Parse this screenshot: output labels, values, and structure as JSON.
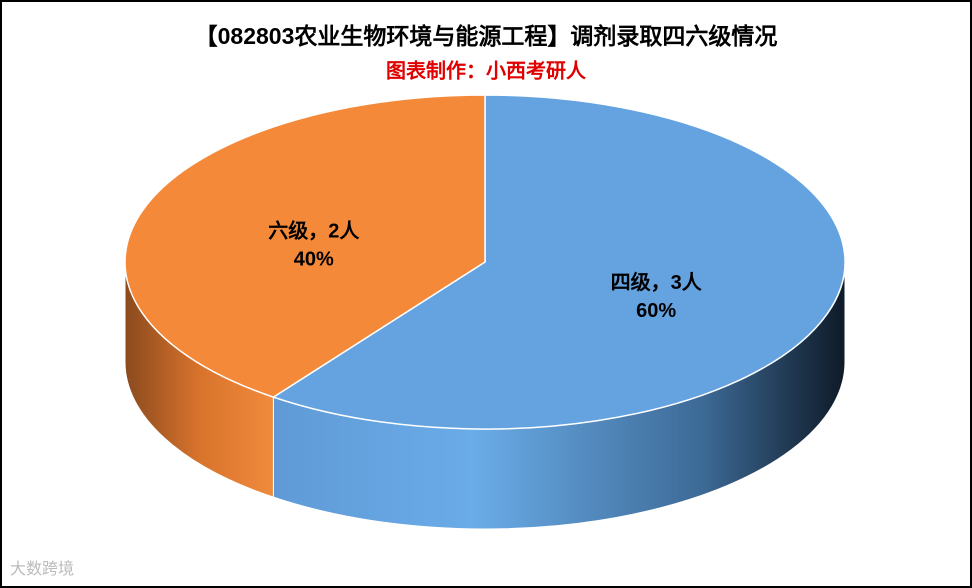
{
  "chart_data": {
    "type": "pie",
    "title": "【082803农业生物环境与能源工程】调剂录取四六级情况",
    "subtitle": "图表制作：小西考研人",
    "categories": [
      "四级",
      "六级"
    ],
    "values": [
      3,
      2
    ],
    "value_labels": [
      "四级，3人",
      "六级，2人"
    ],
    "percentages": [
      60,
      40
    ],
    "percentage_labels": [
      "60%",
      "40%"
    ],
    "colors": [
      "#64a3e0",
      "#f5893a"
    ],
    "watermark": "大数跨境"
  }
}
